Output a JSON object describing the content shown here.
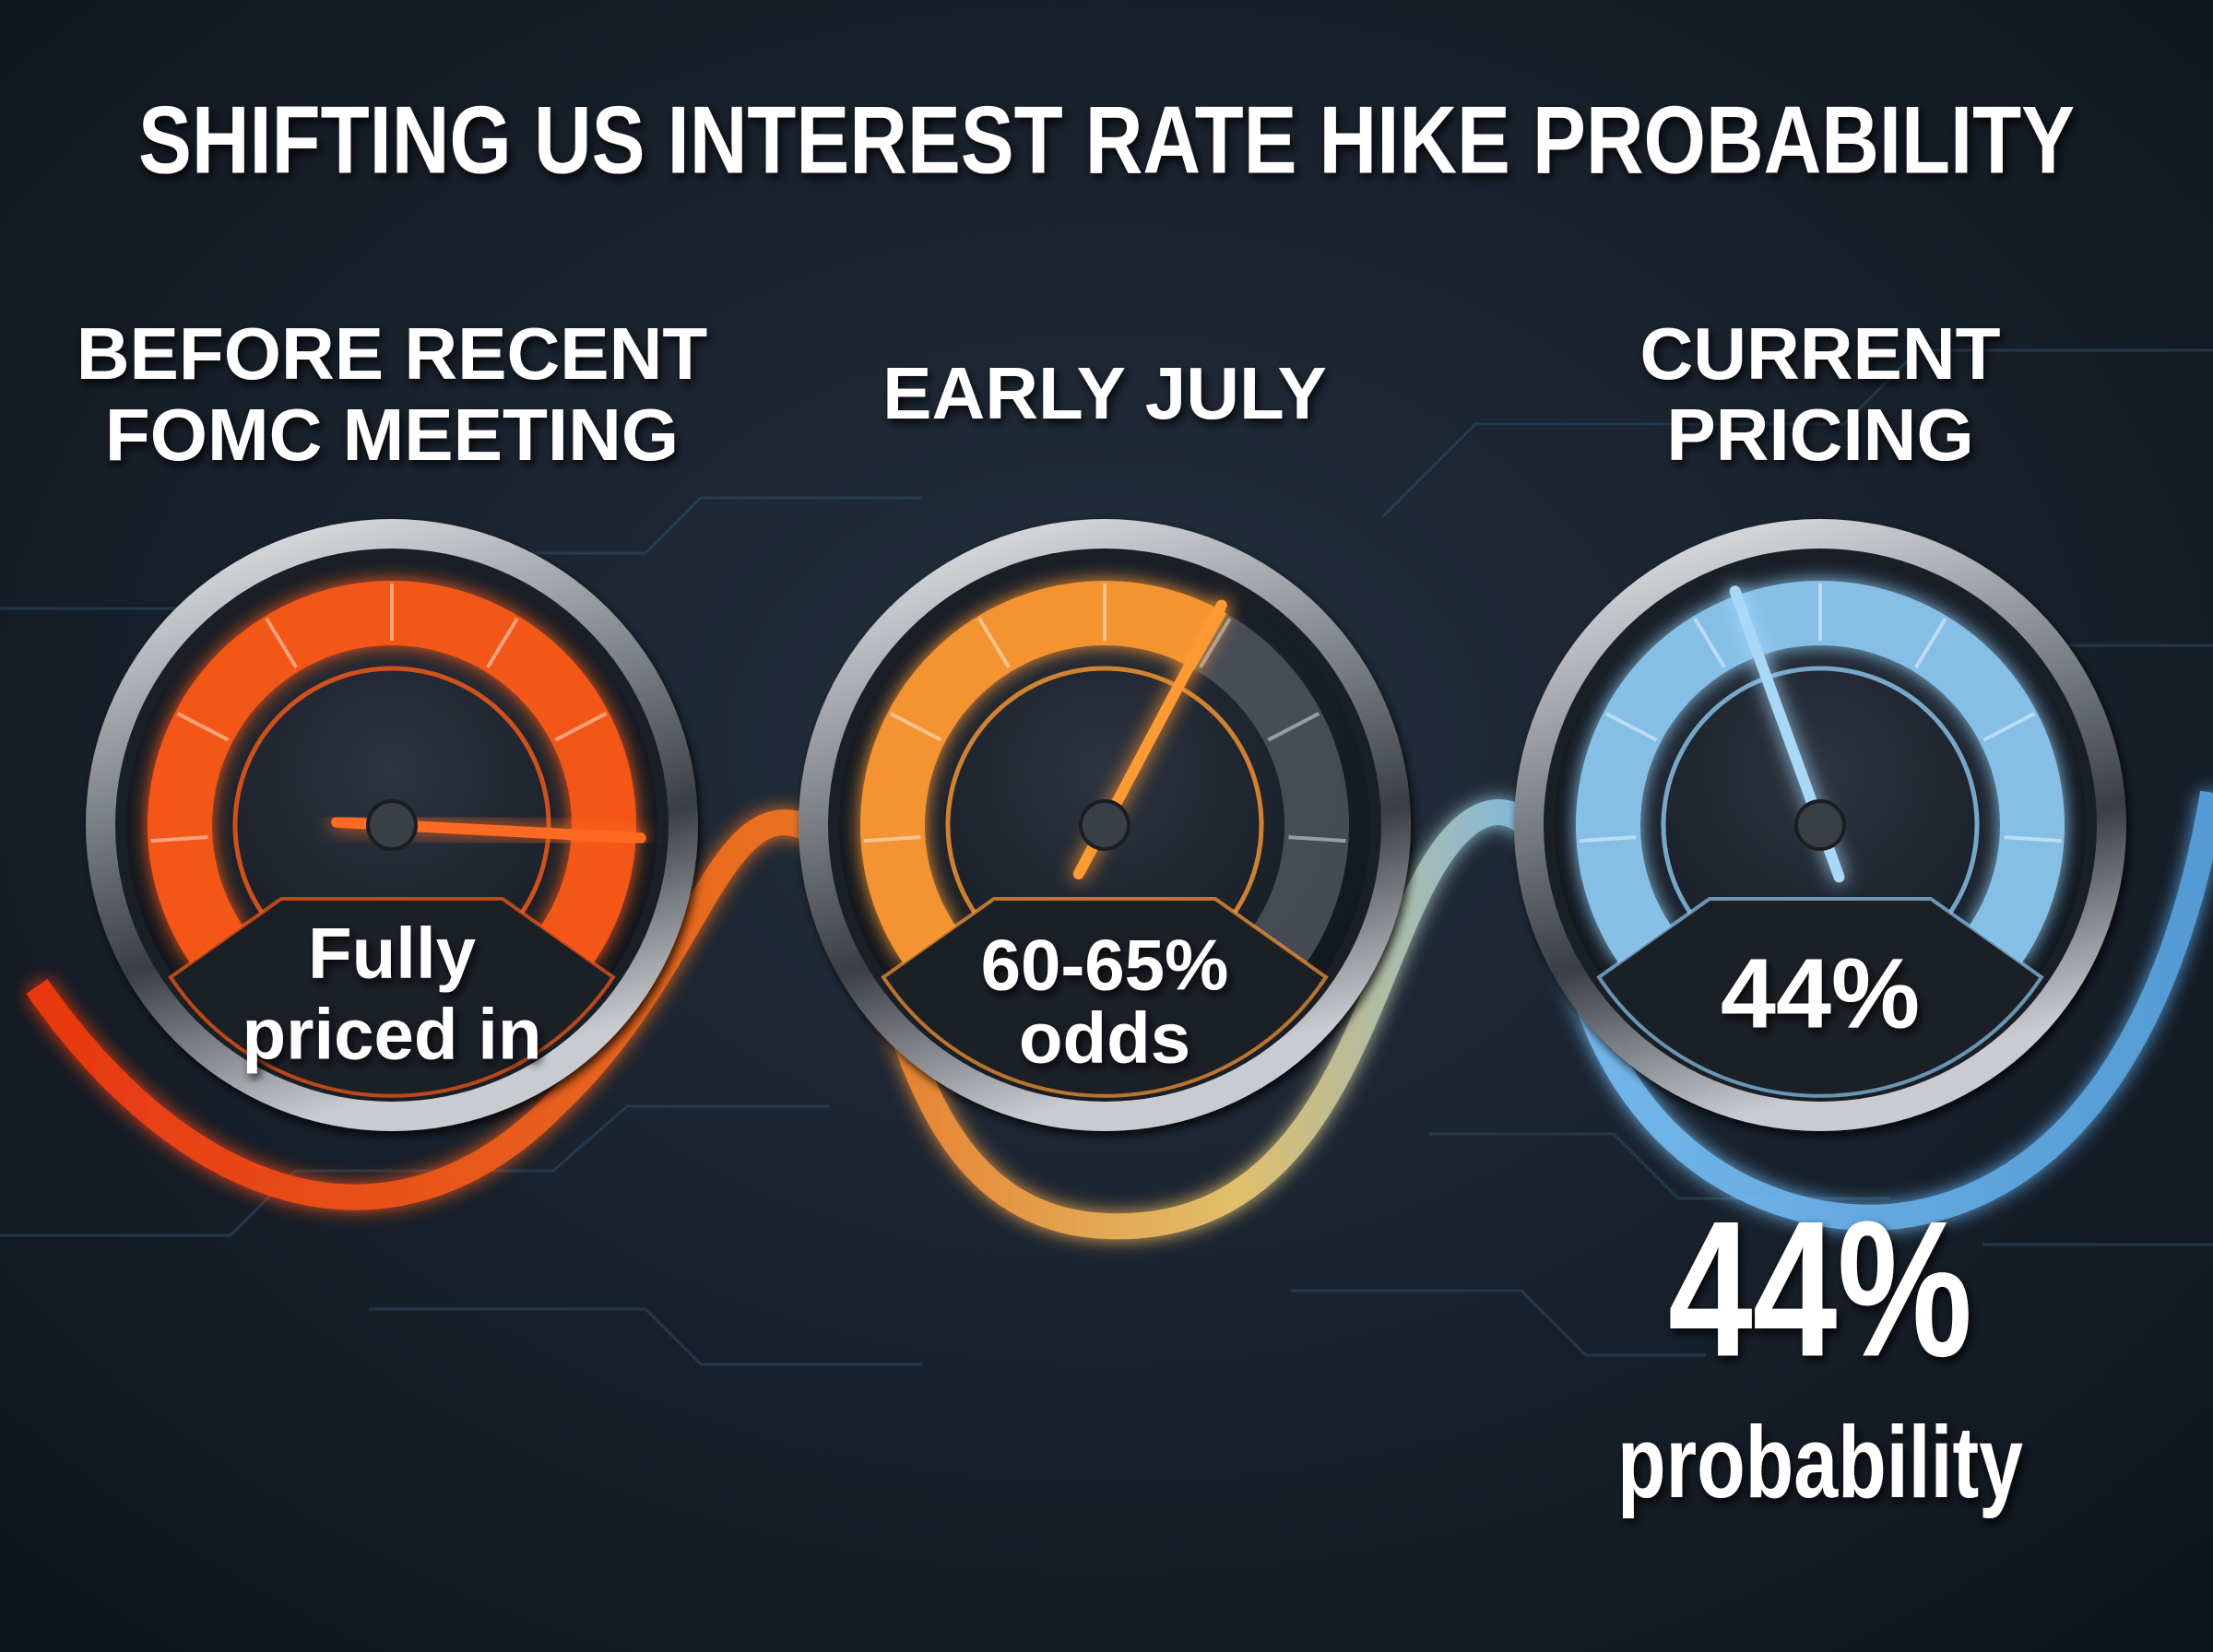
{
  "title": "SHIFTING US INTEREST RATE HIKE PROBABILITY",
  "gauges": [
    {
      "heading": [
        "BEFORE RECENT",
        "FOMC MEETING"
      ],
      "reading": [
        "Fully",
        "priced in"
      ]
    },
    {
      "heading": [
        "EARLY JULY"
      ],
      "reading": [
        "60-65%",
        "odds"
      ]
    },
    {
      "heading": [
        "CURRENT",
        "PRICING"
      ],
      "reading": [
        "44%"
      ]
    }
  ],
  "callout": {
    "value": "44%",
    "caption": "probability"
  }
}
